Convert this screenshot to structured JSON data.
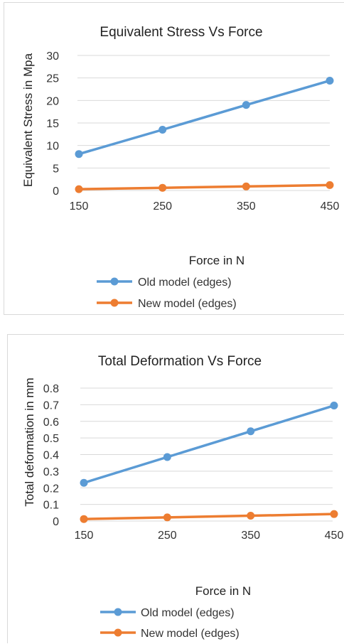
{
  "chart_data": [
    {
      "type": "line",
      "title": "Equivalent Stress Vs Force",
      "xlabel": "Force in N",
      "ylabel": "Equivalent Stress in Mpa",
      "categories": [
        "150",
        "250",
        "350",
        "450"
      ],
      "ylim": [
        0,
        30
      ],
      "yticks": [
        "0",
        "5",
        "10",
        "15",
        "20",
        "25",
        "30"
      ],
      "grid": true,
      "legend_position": "bottom",
      "series": [
        {
          "name": "Old model (edges)",
          "color": "#5b9bd5",
          "values": [
            8.1,
            13.5,
            19.0,
            24.4
          ]
        },
        {
          "name": "New model (edges)",
          "color": "#ed7d31",
          "values": [
            0.3,
            0.6,
            0.9,
            1.2
          ]
        }
      ]
    },
    {
      "type": "line",
      "title": "Total Deformation Vs Force",
      "xlabel": "Force in N",
      "ylabel": "Total deformation in mm",
      "categories": [
        "150",
        "250",
        "350",
        "450"
      ],
      "ylim": [
        0,
        0.8
      ],
      "yticks": [
        "0",
        "0.1",
        "0.2",
        "0.3",
        "0.4",
        "0.5",
        "0.6",
        "0.7",
        "0.8"
      ],
      "grid": true,
      "legend_position": "bottom",
      "series": [
        {
          "name": "Old model (edges)",
          "color": "#5b9bd5",
          "values": [
            0.23,
            0.385,
            0.54,
            0.695
          ]
        },
        {
          "name": "New model (edges)",
          "color": "#ed7d31",
          "values": [
            0.012,
            0.022,
            0.032,
            0.042
          ]
        }
      ]
    }
  ]
}
